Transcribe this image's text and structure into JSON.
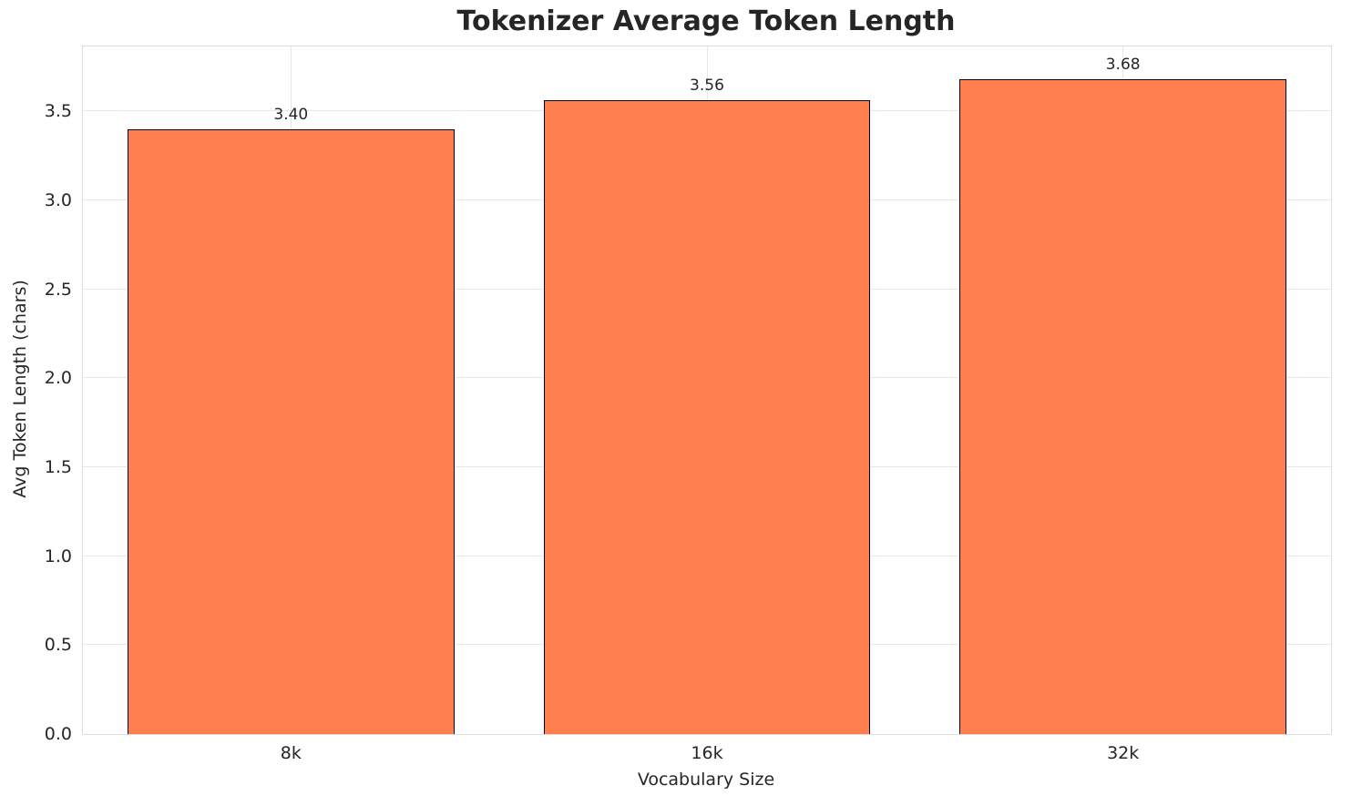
{
  "chart_data": {
    "type": "bar",
    "title": "Tokenizer Average Token Length",
    "xlabel": "Vocabulary Size",
    "ylabel": "Avg Token Length (chars)",
    "categories": [
      "8k",
      "16k",
      "32k"
    ],
    "values": [
      3.4,
      3.56,
      3.68
    ],
    "value_labels": [
      "3.40",
      "3.56",
      "3.68"
    ],
    "ylim": [
      0,
      3.864
    ],
    "yticks": [
      0.0,
      0.5,
      1.0,
      1.5,
      2.0,
      2.5,
      3.0,
      3.5
    ],
    "ytick_labels": [
      "0.0",
      "0.5",
      "1.0",
      "1.5",
      "2.0",
      "2.5",
      "3.0",
      "3.5"
    ],
    "grid": true,
    "legend": "none",
    "bar_color": "#FF7F50",
    "bar_edge_color": "#000000",
    "bar_width_fraction": 0.785
  }
}
